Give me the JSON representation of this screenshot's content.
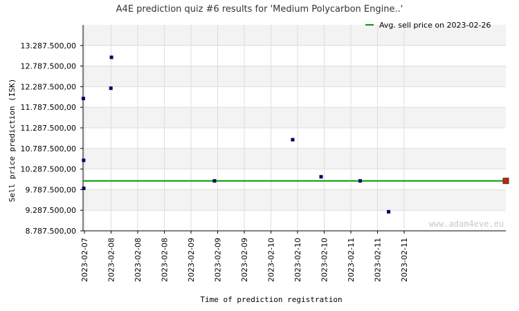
{
  "chart_data": {
    "type": "scatter",
    "title": "A4E prediction quiz #6 results for 'Medium Polycarbon Engine..'",
    "xlabel": "Time of prediction registration",
    "ylabel": "Sell price prediction (ISK)",
    "ylim": [
      8787500,
      13787500
    ],
    "yticks": [
      {
        "value": 8787500,
        "label": "8.787.500,00"
      },
      {
        "value": 9287500,
        "label": "9.287.500,00"
      },
      {
        "value": 9787500,
        "label": "9.787.500,00"
      },
      {
        "value": 10287500,
        "label": "10.287.500,00"
      },
      {
        "value": 10787500,
        "label": "10.787.500,00"
      },
      {
        "value": 11287500,
        "label": "11.287.500,00"
      },
      {
        "value": 11787500,
        "label": "11.787.500,00"
      },
      {
        "value": 12287500,
        "label": "12.287.500,00"
      },
      {
        "value": 12787500,
        "label": "12.787.500,00"
      },
      {
        "value": 13287500,
        "label": "13.287.500,00"
      }
    ],
    "xticks": [
      "2023-02-07",
      "2023-02-08",
      "2023-02-08",
      "2023-02-08",
      "2023-02-09",
      "2023-02-09",
      "2023-02-09",
      "2023-02-10",
      "2023-02-10",
      "2023-02-10",
      "2023-02-11",
      "2023-02-11",
      "2023-02-11"
    ],
    "xlim": [
      "2023-02-07 00:00",
      "2023-02-11 23:00"
    ],
    "points": [
      {
        "x": "2023-02-07 00:05",
        "y": 12000000
      },
      {
        "x": "2023-02-07 00:10",
        "y": 10500000
      },
      {
        "x": "2023-02-07 00:12",
        "y": 9820000
      },
      {
        "x": "2023-02-07 07:50",
        "y": 12250000
      },
      {
        "x": "2023-02-07 08:00",
        "y": 13000000
      },
      {
        "x": "2023-02-08 13:00",
        "y": 10000000
      },
      {
        "x": "2023-02-09 11:00",
        "y": 11000000
      },
      {
        "x": "2023-02-09 19:00",
        "y": 10100000
      },
      {
        "x": "2023-02-10 06:00",
        "y": 10000000
      },
      {
        "x": "2023-02-10 14:00",
        "y": 9250000
      }
    ],
    "reference_line": {
      "name": "Avg. sell price on 2023-02-26",
      "y": 10000000
    },
    "final_marker": {
      "x": "2023-02-11 23:00",
      "y": 10000000
    },
    "legend_position": "top-right",
    "grid": true,
    "colors": {
      "points": "#000066",
      "line": "#009900",
      "final_marker": "#cc2200",
      "band": "#f3f3f3",
      "grid": "#dddddd"
    }
  },
  "watermark": "www.adam4eve.eu"
}
